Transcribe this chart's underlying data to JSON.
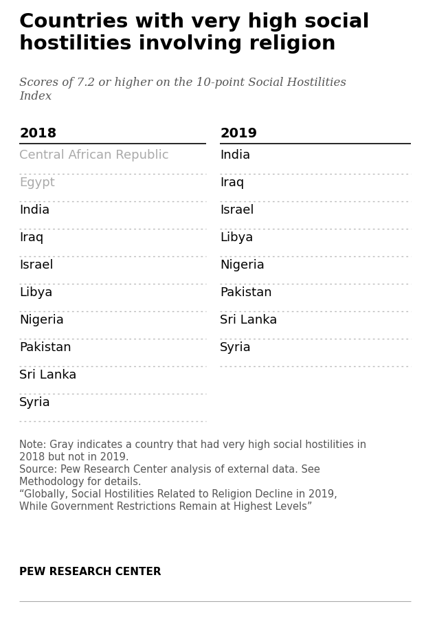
{
  "title": "Countries with very high social\nhostilities involving religion",
  "subtitle": "Scores of 7.2 or higher on the 10-point Social Hostilities\nIndex",
  "col1_header": "2018",
  "col2_header": "2019",
  "col1_items": [
    {
      "name": "Central African Republic",
      "gray": true
    },
    {
      "name": "Egypt",
      "gray": true
    },
    {
      "name": "India",
      "gray": false
    },
    {
      "name": "Iraq",
      "gray": false
    },
    {
      "name": "Israel",
      "gray": false
    },
    {
      "name": "Libya",
      "gray": false
    },
    {
      "name": "Nigeria",
      "gray": false
    },
    {
      "name": "Pakistan",
      "gray": false
    },
    {
      "name": "Sri Lanka",
      "gray": false
    },
    {
      "name": "Syria",
      "gray": false
    }
  ],
  "col2_items": [
    "India",
    "Iraq",
    "Israel",
    "Libya",
    "Nigeria",
    "Pakistan",
    "Sri Lanka",
    "Syria"
  ],
  "note_lines": [
    "Note: Gray indicates a country that had very high social hostilities in",
    "2018 but not in 2019.",
    "Source: Pew Research Center analysis of external data. See",
    "Methodology for details.",
    "“Globally, Social Hostilities Related to Religion Decline in 2019,",
    "While Government Restrictions Remain at Highest Levels”"
  ],
  "footer": "PEW RESEARCH CENTER",
  "background_color": "#ffffff",
  "title_color": "#000000",
  "subtitle_color": "#555555",
  "header_color": "#000000",
  "normal_item_color": "#000000",
  "gray_item_color": "#aaaaaa",
  "note_color": "#555555",
  "footer_color": "#000000",
  "divider_color": "#bbbbbb",
  "header_line_color": "#000000"
}
